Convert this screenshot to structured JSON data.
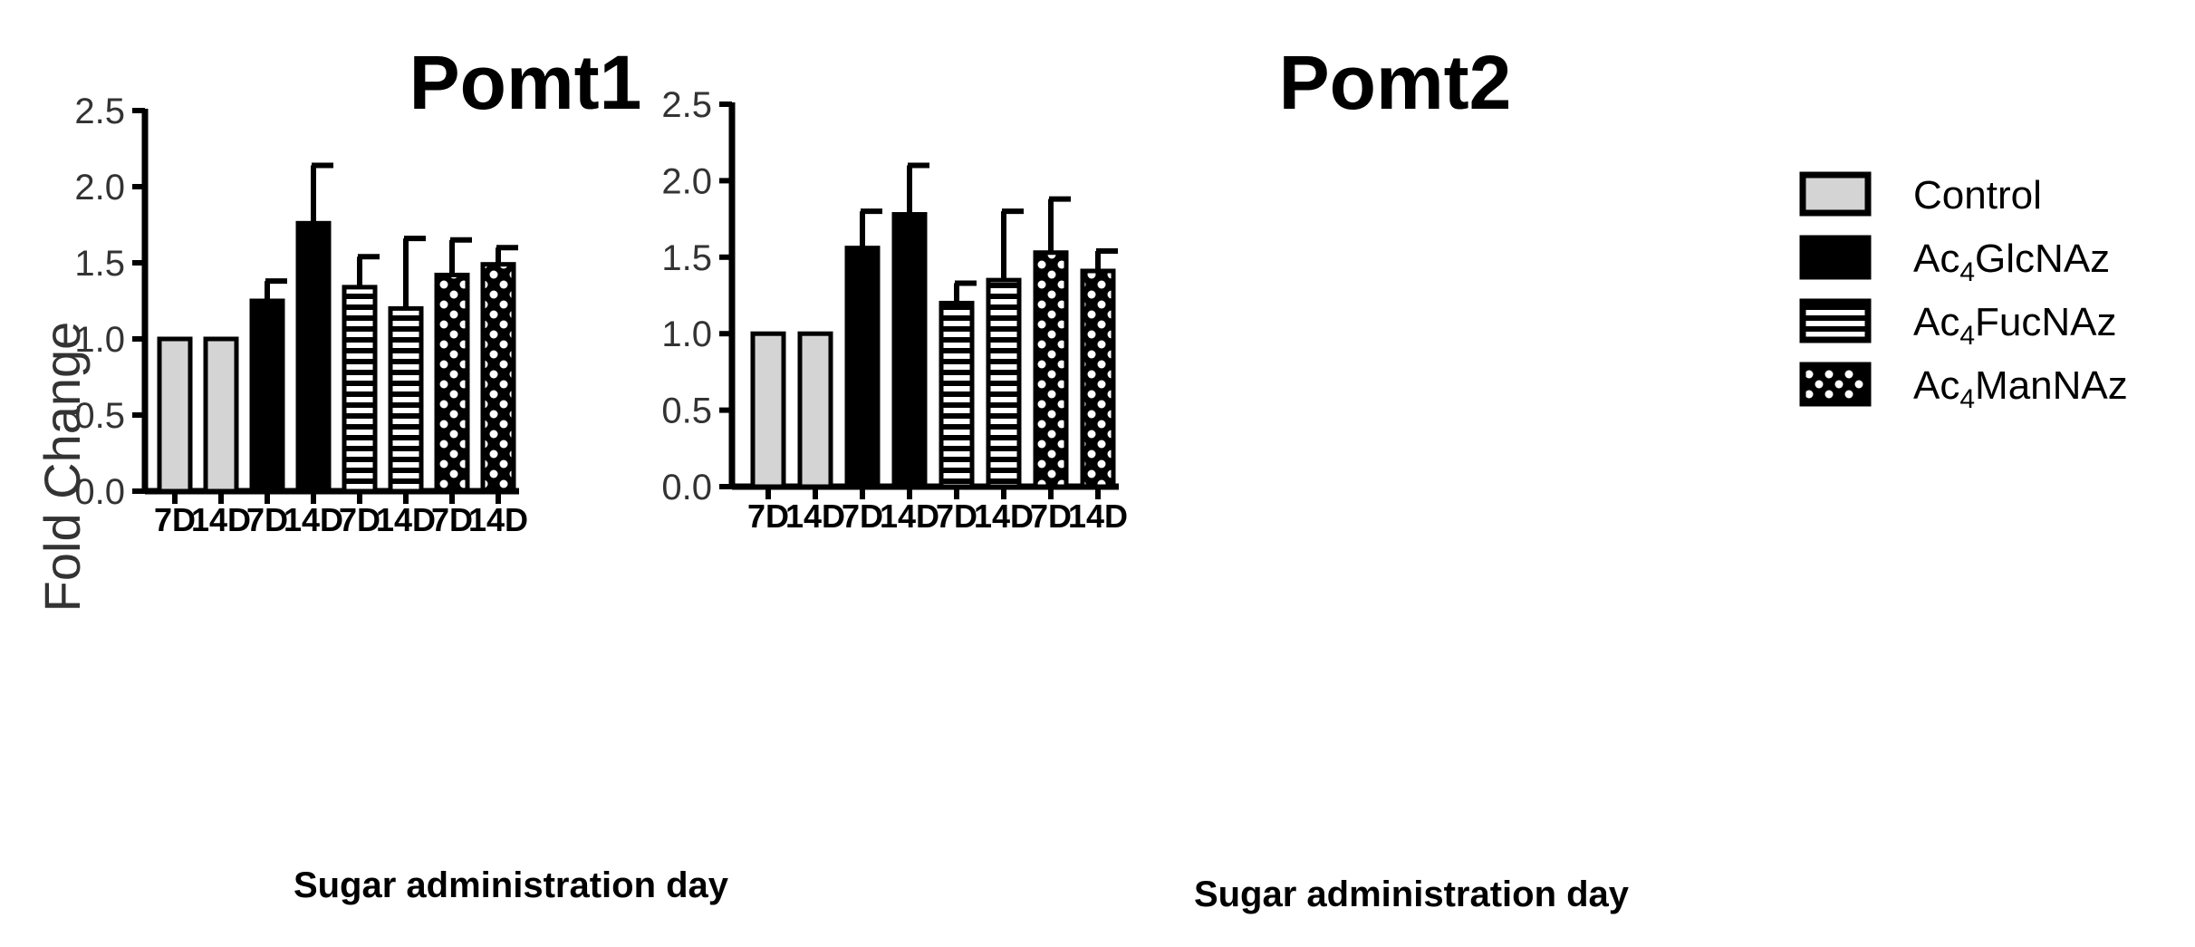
{
  "chart_data": [
    {
      "type": "bar",
      "title": "Pomt1",
      "xlabel": "Sugar administration day",
      "ylabel": "Fold Change",
      "ylim": [
        0,
        2.5
      ],
      "yticks": [
        "0.0",
        "0.5",
        "1.0",
        "1.5",
        "2.0",
        "2.5"
      ],
      "categories": [
        "7D",
        "14D",
        "7D",
        "14D",
        "7D",
        "14D",
        "7D",
        "14D"
      ],
      "groups": [
        "Control",
        "Control",
        "Ac4GlcNAz",
        "Ac4GlcNAz",
        "Ac4FucNAz",
        "Ac4FucNAz",
        "Ac4ManNAz",
        "Ac4ManNAz"
      ],
      "values": [
        1.0,
        1.0,
        1.25,
        1.76,
        1.34,
        1.2,
        1.42,
        1.49
      ],
      "errors": [
        0,
        0,
        0.13,
        0.38,
        0.2,
        0.46,
        0.23,
        0.11
      ]
    },
    {
      "type": "bar",
      "title": "Pomt2",
      "xlabel": "Sugar administration day",
      "ylabel": "",
      "ylim": [
        0,
        2.5
      ],
      "yticks": [
        "0.0",
        "0.5",
        "1.0",
        "1.5",
        "2.0",
        "2.5"
      ],
      "categories": [
        "7D",
        "14D",
        "7D",
        "14D",
        "7D",
        "14D",
        "7D",
        "14D"
      ],
      "groups": [
        "Control",
        "Control",
        "Ac4GlcNAz",
        "Ac4GlcNAz",
        "Ac4FucNAz",
        "Ac4FucNAz",
        "Ac4ManNAz",
        "Ac4ManNAz"
      ],
      "values": [
        1.0,
        1.0,
        1.56,
        1.78,
        1.2,
        1.35,
        1.53,
        1.41
      ],
      "errors": [
        0,
        0,
        0.24,
        0.32,
        0.13,
        0.45,
        0.35,
        0.13
      ]
    }
  ],
  "legend": [
    {
      "key": "Control",
      "prefix": "Control",
      "sub": "",
      "suffix": "",
      "style": "control"
    },
    {
      "key": "Ac4GlcNAz",
      "prefix": "Ac",
      "sub": "4",
      "suffix": "GlcNAz",
      "style": "glc"
    },
    {
      "key": "Ac4FucNAz",
      "prefix": "Ac",
      "sub": "4",
      "suffix": "FucNAz",
      "style": "fuc"
    },
    {
      "key": "Ac4ManNAz",
      "prefix": "Ac",
      "sub": "4",
      "suffix": "ManNAz",
      "style": "man"
    }
  ],
  "colors": {
    "control_fill": "#d4d4d4",
    "black": "#000000",
    "white": "#ffffff"
  }
}
